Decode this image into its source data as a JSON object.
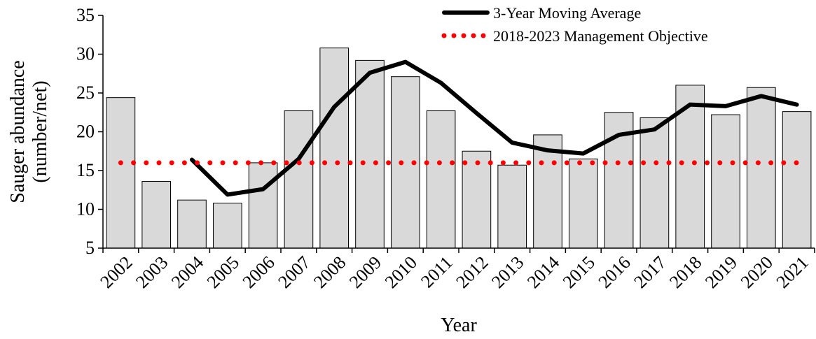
{
  "chart_data": {
    "type": "bar",
    "x_label": "Year",
    "y_label": [
      "Sauger abundance",
      "(number/net)"
    ],
    "categories": [
      "2002",
      "2003",
      "2004",
      "2005",
      "2006",
      "2007",
      "2008",
      "2009",
      "2010",
      "2011",
      "2012",
      "2013",
      "2014",
      "2015",
      "2016",
      "2017",
      "2018",
      "2019",
      "2020",
      "2021"
    ],
    "values": [
      24.4,
      13.6,
      11.2,
      10.8,
      16.0,
      22.7,
      30.8,
      29.2,
      27.1,
      22.7,
      17.5,
      15.7,
      19.6,
      16.5,
      22.5,
      21.8,
      26.0,
      22.2,
      25.7,
      22.6
    ],
    "color": "#d9d9d9",
    "series": [
      {
        "name": "3-Year Moving Average",
        "color": "#000000",
        "style": "solid",
        "values": [
          null,
          null,
          16.4,
          11.9,
          12.6,
          16.5,
          23.2,
          27.6,
          29.0,
          26.3,
          22.4,
          18.6,
          17.6,
          17.2,
          19.6,
          20.3,
          23.5,
          23.3,
          24.6,
          23.5
        ]
      },
      {
        "name": "2018-2023 Management Objective",
        "color": "#ff0000",
        "style": "dotted",
        "values": [
          16,
          16,
          16,
          16,
          16,
          16,
          16,
          16,
          16,
          16,
          16,
          16,
          16,
          16,
          16,
          16,
          16,
          16,
          16,
          16
        ]
      }
    ],
    "ylim": [
      5,
      35
    ],
    "yticks": [
      5,
      10,
      15,
      20,
      25,
      30,
      35
    ],
    "grid": false
  }
}
